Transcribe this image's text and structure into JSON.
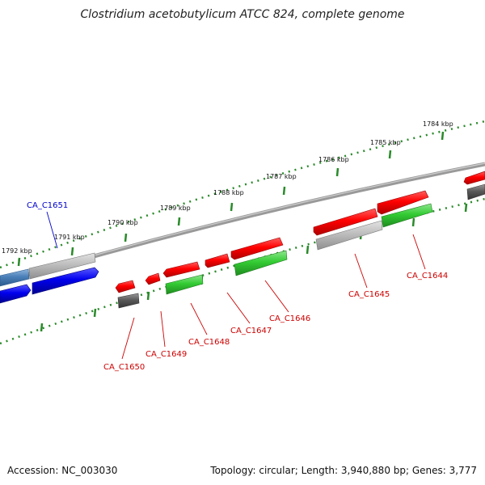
{
  "title": "Clostridium acetobutylicum ATCC 824, complete genome",
  "footer": {
    "accession": "Accession: NC_003030",
    "topology": "Topology: circular; Length: 3,940,880 bp; Genes: 3,777"
  },
  "scale_ticks": [
    "1784 kbp",
    "1785 kbp",
    "1786 kbp",
    "1787 kbp",
    "1788 kbp",
    "1789 kbp",
    "1790 kbp",
    "1791 kbp",
    "1792 kbp"
  ],
  "gene_labels": [
    "CA_C1644",
    "CA_C1645",
    "CA_C1646",
    "CA_C1647",
    "CA_C1648",
    "CA_C1649",
    "CA_C1650",
    "CA_C1651"
  ],
  "colors": {
    "red": "#e40000",
    "green": "#2eb82e",
    "blue": "#1010e0",
    "steel": "#4a7fb8",
    "gray": "#b0b0b0",
    "dark": "#555555",
    "backbone": "#808080",
    "ticks": "#2a8a2a",
    "label_red": "#cc0000",
    "label_blue": "#0000cc"
  }
}
